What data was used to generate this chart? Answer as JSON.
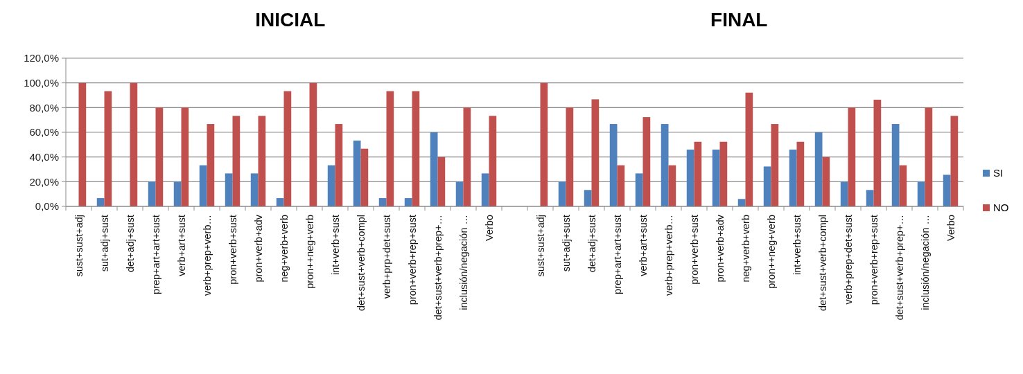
{
  "chart_data": {
    "type": "bar",
    "annotations": [
      "INICIAL",
      "FINAL"
    ],
    "categories": [
      "sust+sust+adj",
      "sut+adj+sust",
      "det+adj+sust",
      "prep+art+art+sust",
      "verb+art+sust",
      "verb+prep+verb…",
      "pron+verb+sust",
      "pron+verb+adv",
      "neg+verb+verb",
      "pron++neg+verb",
      "int+verb+sust",
      "det+sust+verb+compl",
      "verb+prp+det+sust",
      "pron+verb+rep+sust",
      "det+sust+verb+prep+…",
      "inclusión/negación …",
      "Verbo",
      null,
      "sust+sust+adj",
      "sut+adj+sust",
      "det+adj+sust",
      "prep+art+art+sust",
      "verb+art+sust",
      "verb+prep+verb…",
      "pron+verb+sust",
      "pron+verb+adv",
      "neg+verb+verb",
      "pron++neg+verb",
      "int+verb+sust",
      "det+sust+verb+compl",
      "verb+prep+det+sust",
      "pron+verb+rep+sust",
      "det+sust+verb+prep+…",
      "inclusión/negación …",
      "Verbo"
    ],
    "series": [
      {
        "name": "SI",
        "color": "#4f81bd",
        "values": [
          0,
          6.7,
          0,
          20,
          20,
          33.3,
          26.7,
          26.7,
          6.7,
          0,
          33.3,
          53.3,
          6.7,
          6.7,
          60,
          20,
          26.7,
          null,
          0,
          20,
          13.3,
          66.7,
          26.7,
          66.7,
          46,
          46,
          6,
          32.3,
          46,
          60,
          20,
          13.3,
          66.7,
          20,
          25.6
        ]
      },
      {
        "name": "NO",
        "color": "#c0504d",
        "values": [
          100,
          93.3,
          100,
          80,
          80,
          66.7,
          73.3,
          73.3,
          93.3,
          100,
          66.7,
          46.7,
          93.3,
          93.3,
          40,
          80,
          73.3,
          null,
          100,
          80,
          86.7,
          33.3,
          72.3,
          33.3,
          52.3,
          52.3,
          92.1,
          66.7,
          52.3,
          40,
          80,
          86.4,
          33.3,
          80,
          73.3
        ]
      }
    ],
    "ylim": [
      0,
      120
    ],
    "yticks": [
      {
        "value": 0,
        "label": "0,0%"
      },
      {
        "value": 20,
        "label": "20,0%"
      },
      {
        "value": 40,
        "label": "40,0%"
      },
      {
        "value": 60,
        "label": "60,0%"
      },
      {
        "value": 80,
        "label": "80,0%"
      },
      {
        "value": 100,
        "label": "100,0%"
      },
      {
        "value": 120,
        "label": "120,0%"
      }
    ],
    "grid": "y",
    "legend": "right"
  }
}
